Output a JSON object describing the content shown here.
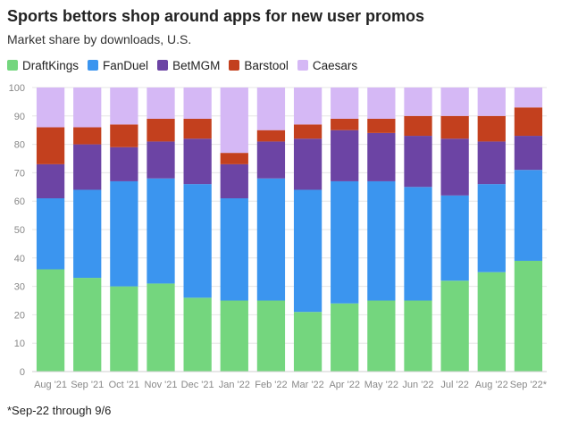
{
  "chart_data": {
    "type": "bar",
    "stacked": true,
    "title": "Sports bettors shop around apps for new user promos",
    "subtitle": "Market share by downloads, U.S.",
    "footnote": "*Sep-22 through 9/6",
    "xlabel": "",
    "ylabel": "",
    "ylim": [
      0,
      100
    ],
    "yticks": [
      0,
      10,
      20,
      30,
      40,
      50,
      60,
      70,
      80,
      90,
      100
    ],
    "grid": true,
    "legend_position": "top-left",
    "categories": [
      "Aug '21",
      "Sep '21",
      "Oct '21",
      "Nov '21",
      "Dec '21",
      "Jan '22",
      "Feb '22",
      "Mar '22",
      "Apr '22",
      "May '22",
      "Jun '22",
      "Jul '22",
      "Aug '22",
      "Sep '22*"
    ],
    "series": [
      {
        "name": "DraftKings",
        "color": "#74d67e",
        "values": [
          36,
          33,
          30,
          31,
          26,
          25,
          25,
          21,
          24,
          25,
          25,
          32,
          35,
          39
        ]
      },
      {
        "name": "FanDuel",
        "color": "#3b95ef",
        "values": [
          25,
          31,
          37,
          37,
          40,
          36,
          43,
          43,
          43,
          42,
          40,
          30,
          31,
          32
        ]
      },
      {
        "name": "BetMGM",
        "color": "#6c44a4",
        "values": [
          12,
          16,
          12,
          13,
          16,
          12,
          13,
          18,
          18,
          17,
          18,
          20,
          15,
          12
        ]
      },
      {
        "name": "Barstool",
        "color": "#c3401e",
        "values": [
          13,
          6,
          8,
          8,
          7,
          4,
          4,
          5,
          4,
          5,
          7,
          8,
          9,
          10
        ]
      },
      {
        "name": "Caesars",
        "color": "#d5b8f5",
        "values": [
          14,
          14,
          13,
          11,
          11,
          23,
          15,
          13,
          11,
          11,
          10,
          10,
          10,
          7
        ]
      }
    ]
  }
}
